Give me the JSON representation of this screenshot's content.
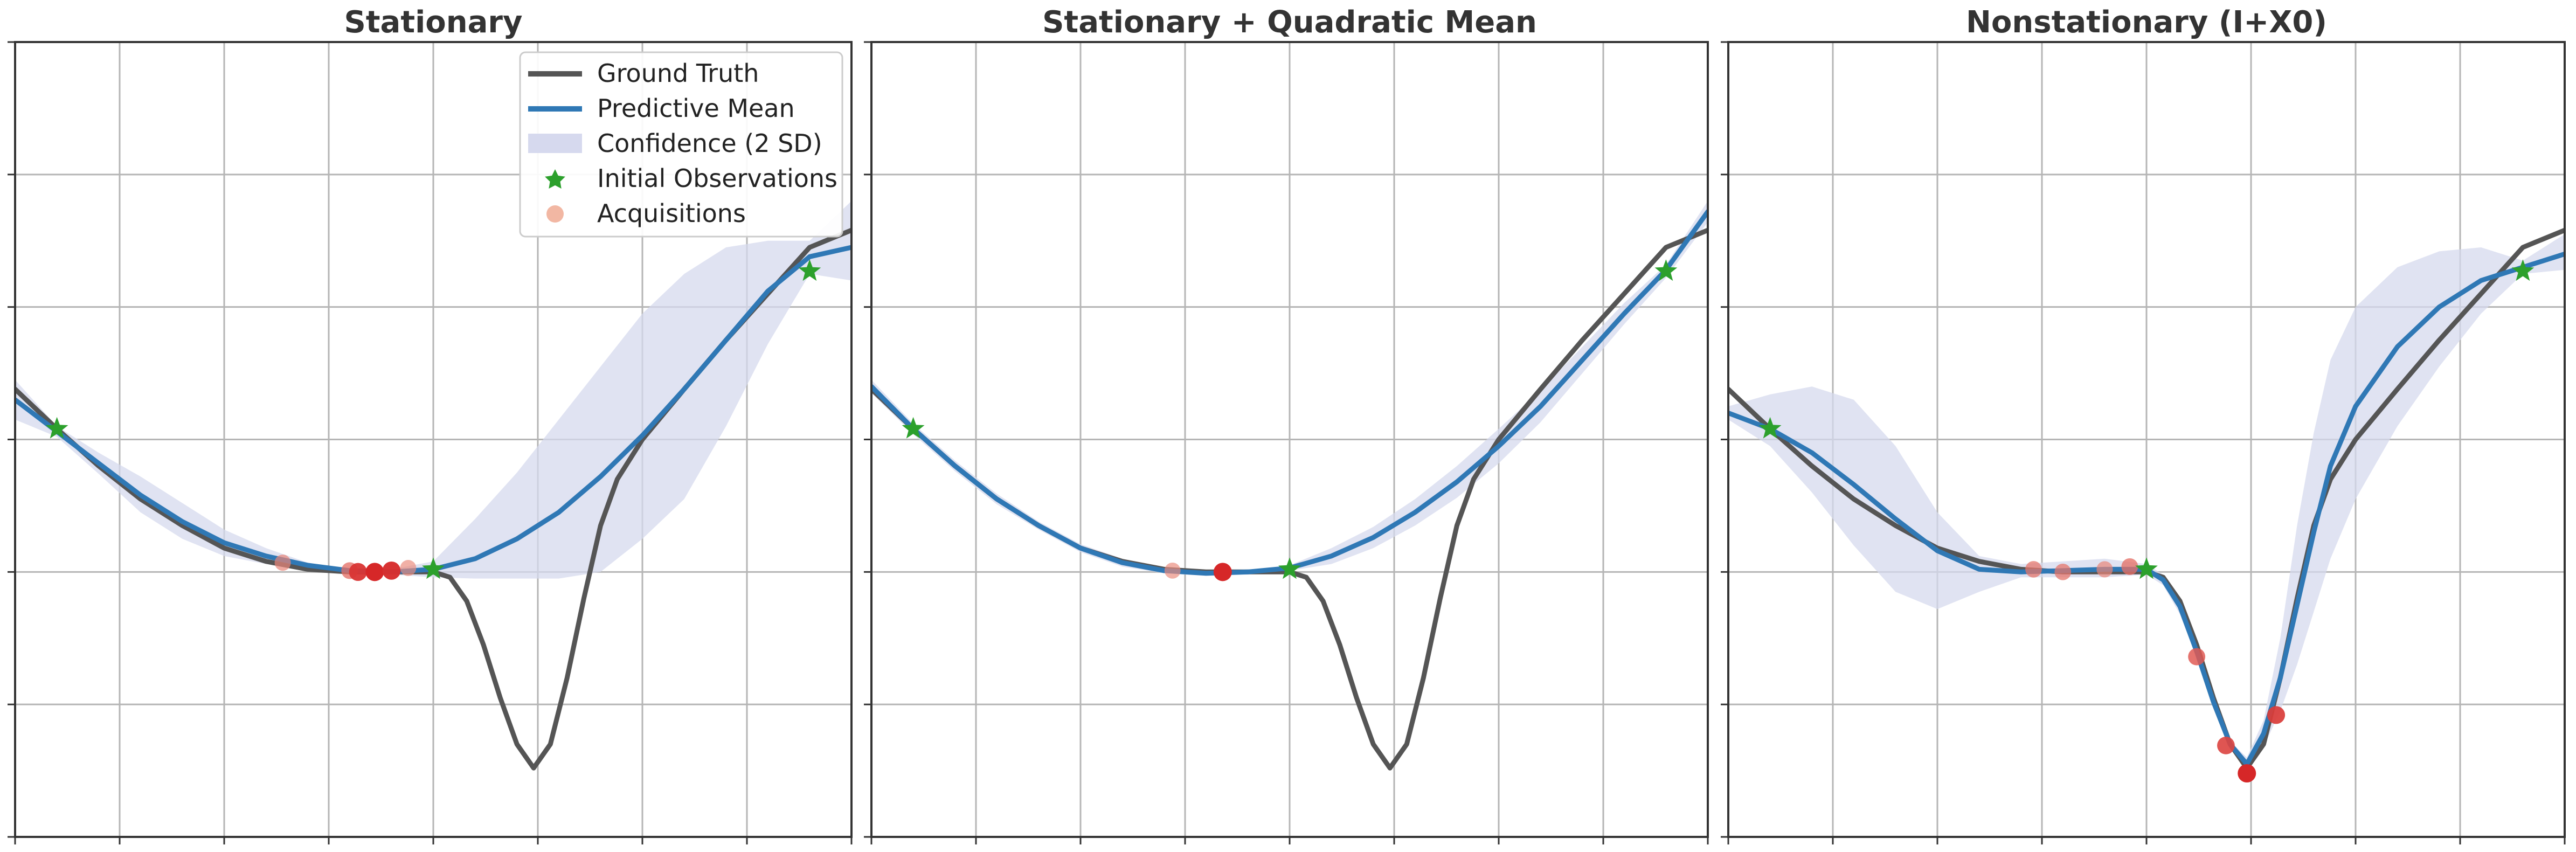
{
  "figure": {
    "legend": {
      "location": "top-right of first panel",
      "entries": [
        {
          "label": "Ground Truth",
          "kind": "line",
          "color": "#555555"
        },
        {
          "label": "Predictive Mean",
          "kind": "line",
          "color": "#2f78b5"
        },
        {
          "label": "Confidence (2 SD)",
          "kind": "band",
          "color": "#d6d9ee"
        },
        {
          "label": "Initial Observations",
          "kind": "star",
          "color": "#2ca02c"
        },
        {
          "label": "Acquisitions",
          "kind": "dot",
          "color": "#f2b7a3"
        }
      ]
    }
  },
  "chart_data": [
    {
      "type": "line",
      "title": "Stationary",
      "xlim": [
        0,
        1
      ],
      "ylim": [
        -2,
        4
      ],
      "grid": true,
      "x_tick_values": [
        0,
        0.125,
        0.25,
        0.375,
        0.5,
        0.625,
        0.75,
        0.875,
        1
      ],
      "y_tick_values": [
        -2,
        -1,
        0,
        1,
        2,
        3,
        4
      ],
      "tick_labels_visible": false,
      "colors": {
        "ground_truth": "#555555",
        "mean": "#2f78b5",
        "band": "#d6d9ee",
        "initial": "#2ca02c",
        "acquisition_light": "#f2b7a3",
        "acquisition_dark": "#d62728"
      },
      "series": [
        {
          "name": "Ground Truth",
          "x": [
            0,
            0.05,
            0.1,
            0.15,
            0.2,
            0.25,
            0.3,
            0.35,
            0.4,
            0.45,
            0.5,
            0.52,
            0.54,
            0.56,
            0.58,
            0.6,
            0.62,
            0.64,
            0.66,
            0.68,
            0.7,
            0.72,
            0.75,
            0.8,
            0.85,
            0.9,
            0.95,
            1.0
          ],
          "y": [
            1.38,
            1.08,
            0.8,
            0.55,
            0.35,
            0.18,
            0.08,
            0.02,
            0.0,
            0.0,
            0.0,
            -0.04,
            -0.22,
            -0.55,
            -0.95,
            -1.3,
            -1.48,
            -1.3,
            -0.8,
            -0.2,
            0.35,
            0.7,
            1.0,
            1.38,
            1.75,
            2.1,
            2.45,
            2.58
          ]
        },
        {
          "name": "Predictive Mean",
          "x": [
            0,
            0.05,
            0.1,
            0.15,
            0.2,
            0.25,
            0.3,
            0.35,
            0.4,
            0.45,
            0.5,
            0.55,
            0.6,
            0.65,
            0.7,
            0.75,
            0.8,
            0.85,
            0.9,
            0.95,
            1.0
          ],
          "y": [
            1.3,
            1.06,
            0.82,
            0.58,
            0.38,
            0.22,
            0.12,
            0.05,
            0.01,
            0.0,
            0.02,
            0.1,
            0.25,
            0.45,
            0.72,
            1.03,
            1.38,
            1.75,
            2.12,
            2.38,
            2.45
          ]
        },
        {
          "name": "Confidence (2 SD) upper",
          "x": [
            0,
            0.05,
            0.1,
            0.15,
            0.2,
            0.25,
            0.3,
            0.35,
            0.4,
            0.45,
            0.5,
            0.55,
            0.6,
            0.65,
            0.7,
            0.75,
            0.8,
            0.85,
            0.9,
            0.95,
            1.0
          ],
          "y": [
            1.45,
            1.1,
            0.9,
            0.72,
            0.52,
            0.32,
            0.18,
            0.07,
            0.02,
            0.02,
            0.08,
            0.4,
            0.75,
            1.15,
            1.55,
            1.95,
            2.25,
            2.45,
            2.5,
            2.5,
            2.8
          ]
        },
        {
          "name": "Confidence (2 SD) lower",
          "x": [
            0,
            0.05,
            0.1,
            0.15,
            0.2,
            0.25,
            0.3,
            0.35,
            0.4,
            0.45,
            0.5,
            0.55,
            0.6,
            0.65,
            0.7,
            0.75,
            0.8,
            0.85,
            0.9,
            0.95,
            1.0
          ],
          "y": [
            1.15,
            1.02,
            0.74,
            0.45,
            0.25,
            0.12,
            0.06,
            0.02,
            -0.01,
            -0.02,
            -0.04,
            -0.05,
            -0.05,
            -0.05,
            0.0,
            0.25,
            0.55,
            1.1,
            1.72,
            2.25,
            2.2
          ]
        },
        {
          "name": "Initial Observations",
          "x": [
            0.05,
            0.5,
            0.95
          ],
          "y": [
            1.08,
            0.02,
            2.27
          ]
        },
        {
          "name": "Acquisitions",
          "x": [
            0.32,
            0.4,
            0.41,
            0.43,
            0.45,
            0.47
          ],
          "y": [
            0.07,
            0.01,
            0.0,
            0.0,
            0.01,
            0.03
          ],
          "intensity": [
            0.35,
            0.5,
            0.9,
            1.0,
            0.95,
            0.3
          ]
        }
      ]
    },
    {
      "type": "line",
      "title": "Stationary + Quadratic Mean",
      "xlim": [
        0,
        1
      ],
      "ylim": [
        -2,
        4
      ],
      "grid": true,
      "x_tick_values": [
        0,
        0.125,
        0.25,
        0.375,
        0.5,
        0.625,
        0.75,
        0.875,
        1
      ],
      "y_tick_values": [
        -2,
        -1,
        0,
        1,
        2,
        3,
        4
      ],
      "tick_labels_visible": false,
      "colors": {
        "ground_truth": "#555555",
        "mean": "#2f78b5",
        "band": "#d6d9ee",
        "initial": "#2ca02c",
        "acquisition_light": "#f2b7a3",
        "acquisition_dark": "#d62728"
      },
      "series": [
        {
          "name": "Ground Truth",
          "x": [
            0,
            0.05,
            0.1,
            0.15,
            0.2,
            0.25,
            0.3,
            0.35,
            0.4,
            0.45,
            0.5,
            0.52,
            0.54,
            0.56,
            0.58,
            0.6,
            0.62,
            0.64,
            0.66,
            0.68,
            0.7,
            0.72,
            0.75,
            0.8,
            0.85,
            0.9,
            0.95,
            1.0
          ],
          "y": [
            1.38,
            1.08,
            0.8,
            0.55,
            0.35,
            0.18,
            0.08,
            0.02,
            0.0,
            0.0,
            0.0,
            -0.04,
            -0.22,
            -0.55,
            -0.95,
            -1.3,
            -1.48,
            -1.3,
            -0.8,
            -0.2,
            0.35,
            0.7,
            1.0,
            1.38,
            1.75,
            2.1,
            2.45,
            2.58
          ]
        },
        {
          "name": "Predictive Mean",
          "x": [
            0,
            0.05,
            0.1,
            0.15,
            0.2,
            0.25,
            0.3,
            0.35,
            0.4,
            0.45,
            0.5,
            0.55,
            0.6,
            0.65,
            0.7,
            0.75,
            0.8,
            0.85,
            0.9,
            0.95,
            1.0
          ],
          "y": [
            1.4,
            1.08,
            0.8,
            0.55,
            0.35,
            0.18,
            0.07,
            0.01,
            -0.01,
            0.0,
            0.03,
            0.12,
            0.26,
            0.45,
            0.68,
            0.95,
            1.25,
            1.6,
            1.95,
            2.28,
            2.72
          ]
        },
        {
          "name": "Confidence (2 SD) upper",
          "x": [
            0,
            0.05,
            0.1,
            0.15,
            0.2,
            0.25,
            0.3,
            0.35,
            0.4,
            0.45,
            0.5,
            0.55,
            0.6,
            0.65,
            0.7,
            0.75,
            0.8,
            0.85,
            0.9,
            0.95,
            1.0
          ],
          "y": [
            1.45,
            1.12,
            0.84,
            0.59,
            0.38,
            0.21,
            0.1,
            0.03,
            0.01,
            0.01,
            0.05,
            0.18,
            0.34,
            0.55,
            0.8,
            1.08,
            1.37,
            1.7,
            2.03,
            2.32,
            2.8
          ]
        },
        {
          "name": "Confidence (2 SD) lower",
          "x": [
            0,
            0.05,
            0.1,
            0.15,
            0.2,
            0.25,
            0.3,
            0.35,
            0.4,
            0.45,
            0.5,
            0.55,
            0.6,
            0.65,
            0.7,
            0.75,
            0.8,
            0.85,
            0.9,
            0.95,
            1.0
          ],
          "y": [
            1.35,
            1.04,
            0.76,
            0.51,
            0.32,
            0.15,
            0.04,
            -0.01,
            -0.03,
            -0.02,
            0.01,
            0.06,
            0.18,
            0.35,
            0.56,
            0.82,
            1.13,
            1.5,
            1.87,
            2.22,
            2.64
          ]
        },
        {
          "name": "Initial Observations",
          "x": [
            0.05,
            0.5,
            0.95
          ],
          "y": [
            1.08,
            0.02,
            2.27
          ]
        },
        {
          "name": "Acquisitions",
          "x": [
            0.36,
            0.42
          ],
          "y": [
            0.01,
            0.0
          ],
          "intensity": [
            0.3,
            1.0
          ]
        }
      ]
    },
    {
      "type": "line",
      "title": "Nonstationary (I+X0)",
      "xlim": [
        0,
        1
      ],
      "ylim": [
        -2,
        4
      ],
      "grid": true,
      "x_tick_values": [
        0,
        0.125,
        0.25,
        0.375,
        0.5,
        0.625,
        0.75,
        0.875,
        1
      ],
      "y_tick_values": [
        -2,
        -1,
        0,
        1,
        2,
        3,
        4
      ],
      "tick_labels_visible": false,
      "colors": {
        "ground_truth": "#555555",
        "mean": "#2f78b5",
        "band": "#d6d9ee",
        "initial": "#2ca02c",
        "acquisition_light": "#f2b7a3",
        "acquisition_dark": "#d62728"
      },
      "series": [
        {
          "name": "Ground Truth",
          "x": [
            0,
            0.05,
            0.1,
            0.15,
            0.2,
            0.25,
            0.3,
            0.35,
            0.4,
            0.45,
            0.5,
            0.52,
            0.54,
            0.56,
            0.58,
            0.6,
            0.62,
            0.64,
            0.66,
            0.68,
            0.7,
            0.72,
            0.75,
            0.8,
            0.85,
            0.9,
            0.95,
            1.0
          ],
          "y": [
            1.38,
            1.08,
            0.8,
            0.55,
            0.35,
            0.18,
            0.08,
            0.02,
            0.0,
            0.0,
            0.0,
            -0.04,
            -0.22,
            -0.55,
            -0.95,
            -1.3,
            -1.48,
            -1.3,
            -0.8,
            -0.2,
            0.35,
            0.7,
            1.0,
            1.38,
            1.75,
            2.1,
            2.45,
            2.58
          ]
        },
        {
          "name": "Predictive Mean",
          "x": [
            0,
            0.05,
            0.1,
            0.15,
            0.2,
            0.25,
            0.3,
            0.35,
            0.4,
            0.45,
            0.5,
            0.52,
            0.54,
            0.56,
            0.58,
            0.6,
            0.62,
            0.64,
            0.66,
            0.68,
            0.7,
            0.72,
            0.75,
            0.8,
            0.85,
            0.9,
            0.95,
            1.0
          ],
          "y": [
            1.2,
            1.08,
            0.9,
            0.66,
            0.4,
            0.16,
            0.02,
            0.0,
            0.01,
            0.02,
            0.02,
            -0.06,
            -0.26,
            -0.6,
            -0.98,
            -1.3,
            -1.45,
            -1.22,
            -0.8,
            -0.25,
            0.3,
            0.8,
            1.25,
            1.7,
            2.0,
            2.2,
            2.3,
            2.4
          ]
        },
        {
          "name": "Confidence (2 SD) upper",
          "x": [
            0,
            0.05,
            0.1,
            0.15,
            0.2,
            0.25,
            0.3,
            0.35,
            0.4,
            0.45,
            0.5,
            0.52,
            0.54,
            0.56,
            0.58,
            0.6,
            0.62,
            0.64,
            0.66,
            0.68,
            0.7,
            0.72,
            0.75,
            0.8,
            0.85,
            0.9,
            0.95,
            1.0
          ],
          "y": [
            1.25,
            1.34,
            1.4,
            1.3,
            0.95,
            0.45,
            0.12,
            0.06,
            0.08,
            0.1,
            0.06,
            -0.02,
            -0.2,
            -0.55,
            -0.95,
            -1.28,
            -1.4,
            -1.12,
            -0.5,
            0.35,
            1.05,
            1.6,
            2.0,
            2.3,
            2.42,
            2.45,
            2.35,
            2.55
          ]
        },
        {
          "name": "Confidence (2 SD) lower",
          "x": [
            0,
            0.05,
            0.1,
            0.15,
            0.2,
            0.25,
            0.3,
            0.35,
            0.4,
            0.45,
            0.5,
            0.52,
            0.54,
            0.56,
            0.58,
            0.6,
            0.62,
            0.64,
            0.66,
            0.68,
            0.7,
            0.72,
            0.75,
            0.8,
            0.85,
            0.9,
            0.95,
            1.0
          ],
          "y": [
            1.15,
            0.95,
            0.6,
            0.2,
            -0.15,
            -0.28,
            -0.15,
            -0.04,
            -0.04,
            -0.04,
            -0.02,
            -0.1,
            -0.32,
            -0.65,
            -1.02,
            -1.33,
            -1.5,
            -1.32,
            -1.05,
            -0.7,
            -0.3,
            0.1,
            0.55,
            1.1,
            1.55,
            1.95,
            2.25,
            2.28
          ]
        },
        {
          "name": "Initial Observations",
          "x": [
            0.05,
            0.5,
            0.95
          ],
          "y": [
            1.08,
            0.02,
            2.27
          ]
        },
        {
          "name": "Acquisitions",
          "x": [
            0.365,
            0.4,
            0.45,
            0.48,
            0.56,
            0.595,
            0.62,
            0.655
          ],
          "y": [
            0.02,
            0.0,
            0.02,
            0.04,
            -0.64,
            -1.31,
            -1.52,
            -1.08
          ],
          "intensity": [
            0.45,
            0.45,
            0.35,
            0.5,
            0.65,
            0.8,
            1.0,
            0.85
          ]
        }
      ]
    }
  ]
}
